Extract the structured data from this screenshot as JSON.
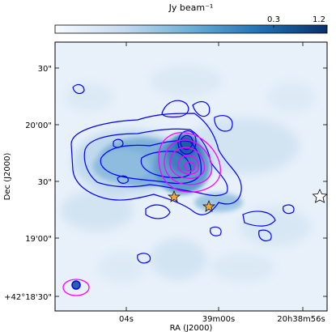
{
  "chart_data": {
    "type": "heatmap",
    "title": "",
    "colorbar": {
      "label": "Jy beam⁻¹",
      "tick_labels": [
        "0.3",
        "1.2"
      ],
      "tick_values": [
        0.3,
        1.2
      ],
      "range": [
        0,
        1.2
      ],
      "scale": "power",
      "colormap": "Blues",
      "placement": "top"
    },
    "xlabel": "RA (J2000)",
    "ylabel": "Dec (J2000)",
    "x_ticks": [
      {
        "label": "04s",
        "value": "20h39m04s"
      },
      {
        "label": "39m00s",
        "value": "20h39m00s"
      },
      {
        "label": "20h38m56s",
        "value": "20h38m56s"
      }
    ],
    "y_ticks": [
      {
        "label": "+42°18'30\"",
        "value": "+42°18'30\""
      },
      {
        "label": "19'00\"",
        "value": "+42°19'00\""
      },
      {
        "label": "30\"",
        "value": "+42°19'30\""
      },
      {
        "label": "20'00\"",
        "value": "+42°20'00\""
      },
      {
        "label": "30\"",
        "value": "+42°20'30\""
      }
    ],
    "contours": [
      {
        "color": "#0000ff",
        "description": "blue contours tracing main emission"
      },
      {
        "color": "#ff00ff",
        "description": "magenta contours on compact peak"
      }
    ],
    "markers": [
      {
        "symbol": "star",
        "fill": "#f2a93b",
        "count": 2
      },
      {
        "symbol": "star",
        "fill": "#ffffff",
        "count": 1
      }
    ],
    "beams": [
      {
        "color": "#0000ff"
      },
      {
        "color": "#ff00ff"
      }
    ]
  }
}
